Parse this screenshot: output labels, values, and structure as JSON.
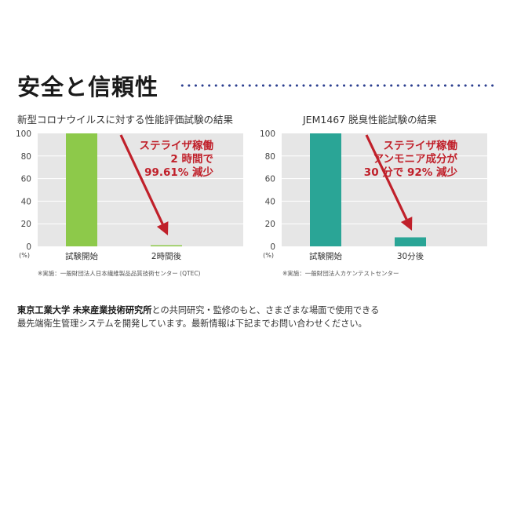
{
  "section": {
    "title": "安全と信頼性"
  },
  "charts": [
    {
      "title": "新型コロナウイルスに対する性能評価試験の結果",
      "note": "※実施：一般財団法人日本繊維製品品質技術センター (QTEC)",
      "bar_color": "#8dc94a",
      "annotation_color": "#c0202a",
      "annotation": [
        "ステライザ稼働",
        "2 時間で",
        "99.61% 減少"
      ],
      "unit_label": "(%)",
      "chart_data": {
        "type": "bar",
        "categories": [
          "試験開始",
          "2時間後"
        ],
        "values": [
          100,
          0.39
        ],
        "ylim": [
          0,
          100
        ],
        "yticks": [
          0,
          20,
          40,
          60,
          80,
          100
        ],
        "title": "新型コロナウイルスに対する性能評価試験の結果",
        "xlabel": "",
        "ylabel": ""
      }
    },
    {
      "title": "JEM1467 脱臭性能試験の結果",
      "note": "※実施：一般財団法人カケンテストセンター",
      "bar_color": "#2aa596",
      "annotation_color": "#c0202a",
      "annotation": [
        "ステライザ稼働",
        "アンモニア成分が",
        "30 分で 92% 減少"
      ],
      "unit_label": "(%)",
      "chart_data": {
        "type": "bar",
        "categories": [
          "試験開始",
          "30分後"
        ],
        "values": [
          100,
          8
        ],
        "ylim": [
          0,
          100
        ],
        "yticks": [
          0,
          20,
          40,
          60,
          80,
          100
        ],
        "title": "JEM1467 脱臭性能試験の結果",
        "xlabel": "",
        "ylabel": ""
      }
    }
  ],
  "footer": {
    "org1": "東京工業大学",
    "org2": "未来産業技術研究所",
    "line1_rest": "との共同研究・監修のもと、さまざまな場面で使用できる",
    "line2": "最先端衛生管理システムを開発しています。最新情報は下記までお問い合わせください。"
  }
}
